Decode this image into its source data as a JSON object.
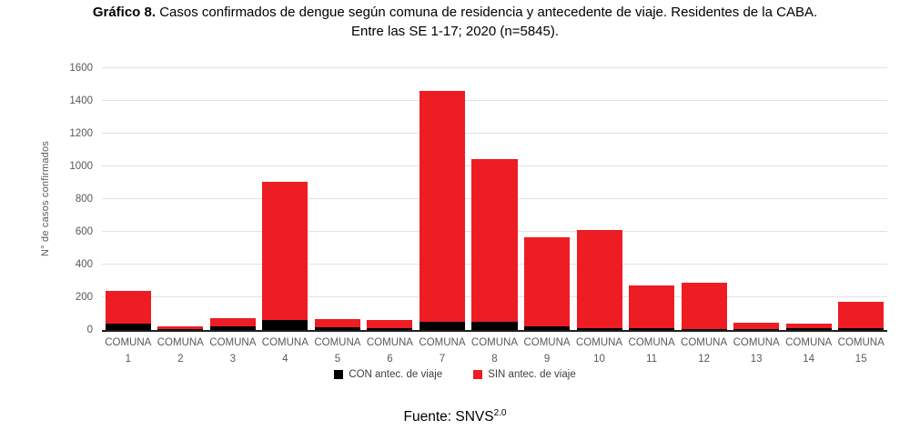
{
  "title": {
    "bold_prefix": "Gráfico 8.",
    "line1_rest": " Casos confirmados de dengue según comuna de residencia y antecedente de viaje. Residentes de la CABA.",
    "line2": "Entre las SE 1-17; 2020 (n=5845)."
  },
  "chart_data": {
    "type": "bar",
    "stacked": true,
    "categories": [
      "COMUNA 1",
      "COMUNA 2",
      "COMUNA 3",
      "COMUNA 4",
      "COMUNA 5",
      "COMUNA 6",
      "COMUNA 7",
      "COMUNA 8",
      "COMUNA 9",
      "COMUNA 10",
      "COMUNA 11",
      "COMUNA 12",
      "COMUNA 13",
      "COMUNA 14",
      "COMUNA 15"
    ],
    "series": [
      {
        "name": "CON antec. de viaje",
        "color": "#000000",
        "values": [
          40,
          5,
          25,
          60,
          15,
          10,
          50,
          50,
          20,
          10,
          10,
          5,
          5,
          10,
          10
        ]
      },
      {
        "name": "SIN antec. de viaje",
        "color": "#ee1c23",
        "values": [
          200,
          20,
          50,
          845,
          50,
          50,
          1410,
          995,
          545,
          600,
          260,
          285,
          40,
          30,
          165
        ]
      }
    ],
    "totals_estimated": [
      240,
      25,
      75,
      905,
      65,
      60,
      1460,
      1045,
      565,
      610,
      270,
      290,
      45,
      40,
      175
    ],
    "ylabel": "N° de casos confirmados",
    "ylim": [
      0,
      1600
    ],
    "yticks": [
      0,
      200,
      400,
      600,
      800,
      1000,
      1200,
      1400,
      1600
    ],
    "grid": true,
    "legend_position": "bottom",
    "colors": {
      "gridline": "#e2e2e2",
      "axis_line": "#1f1f1f",
      "tick_text": "#595959"
    }
  },
  "footer": {
    "source_label": "Fuente: SNVS",
    "source_sup": "2.0"
  }
}
